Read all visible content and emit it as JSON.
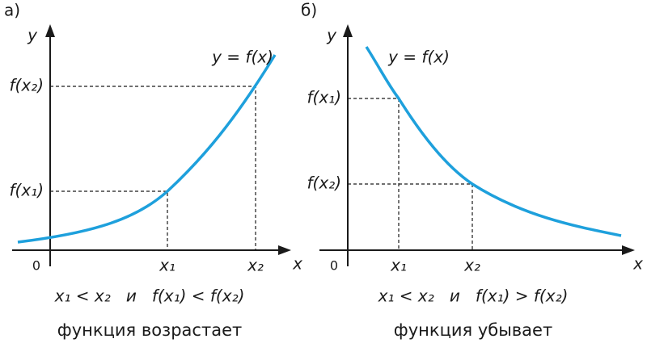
{
  "panels": [
    {
      "label": "а)",
      "y_axis": "y",
      "x_axis": "x",
      "origin": "0",
      "curve_label": "y = f(x)",
      "x_ticks": [
        "x₁",
        "x₂"
      ],
      "y_ticks": [
        "f(x₁)",
        "f(x₂)"
      ],
      "condition": "x₁ < x₂   и   f(x₁) < f(x₂)",
      "caption": "функция возрастает"
    },
    {
      "label": "б)",
      "y_axis": "y",
      "x_axis": "x",
      "origin": "0",
      "curve_label": "y = f(x)",
      "x_ticks": [
        "x₁",
        "x₂"
      ],
      "y_ticks": [
        "f(x₁)",
        "f(x₂)"
      ],
      "condition": "x₁ < x₂   и   f(x₁) > f(x₂)",
      "caption": "функция убывает"
    }
  ]
}
